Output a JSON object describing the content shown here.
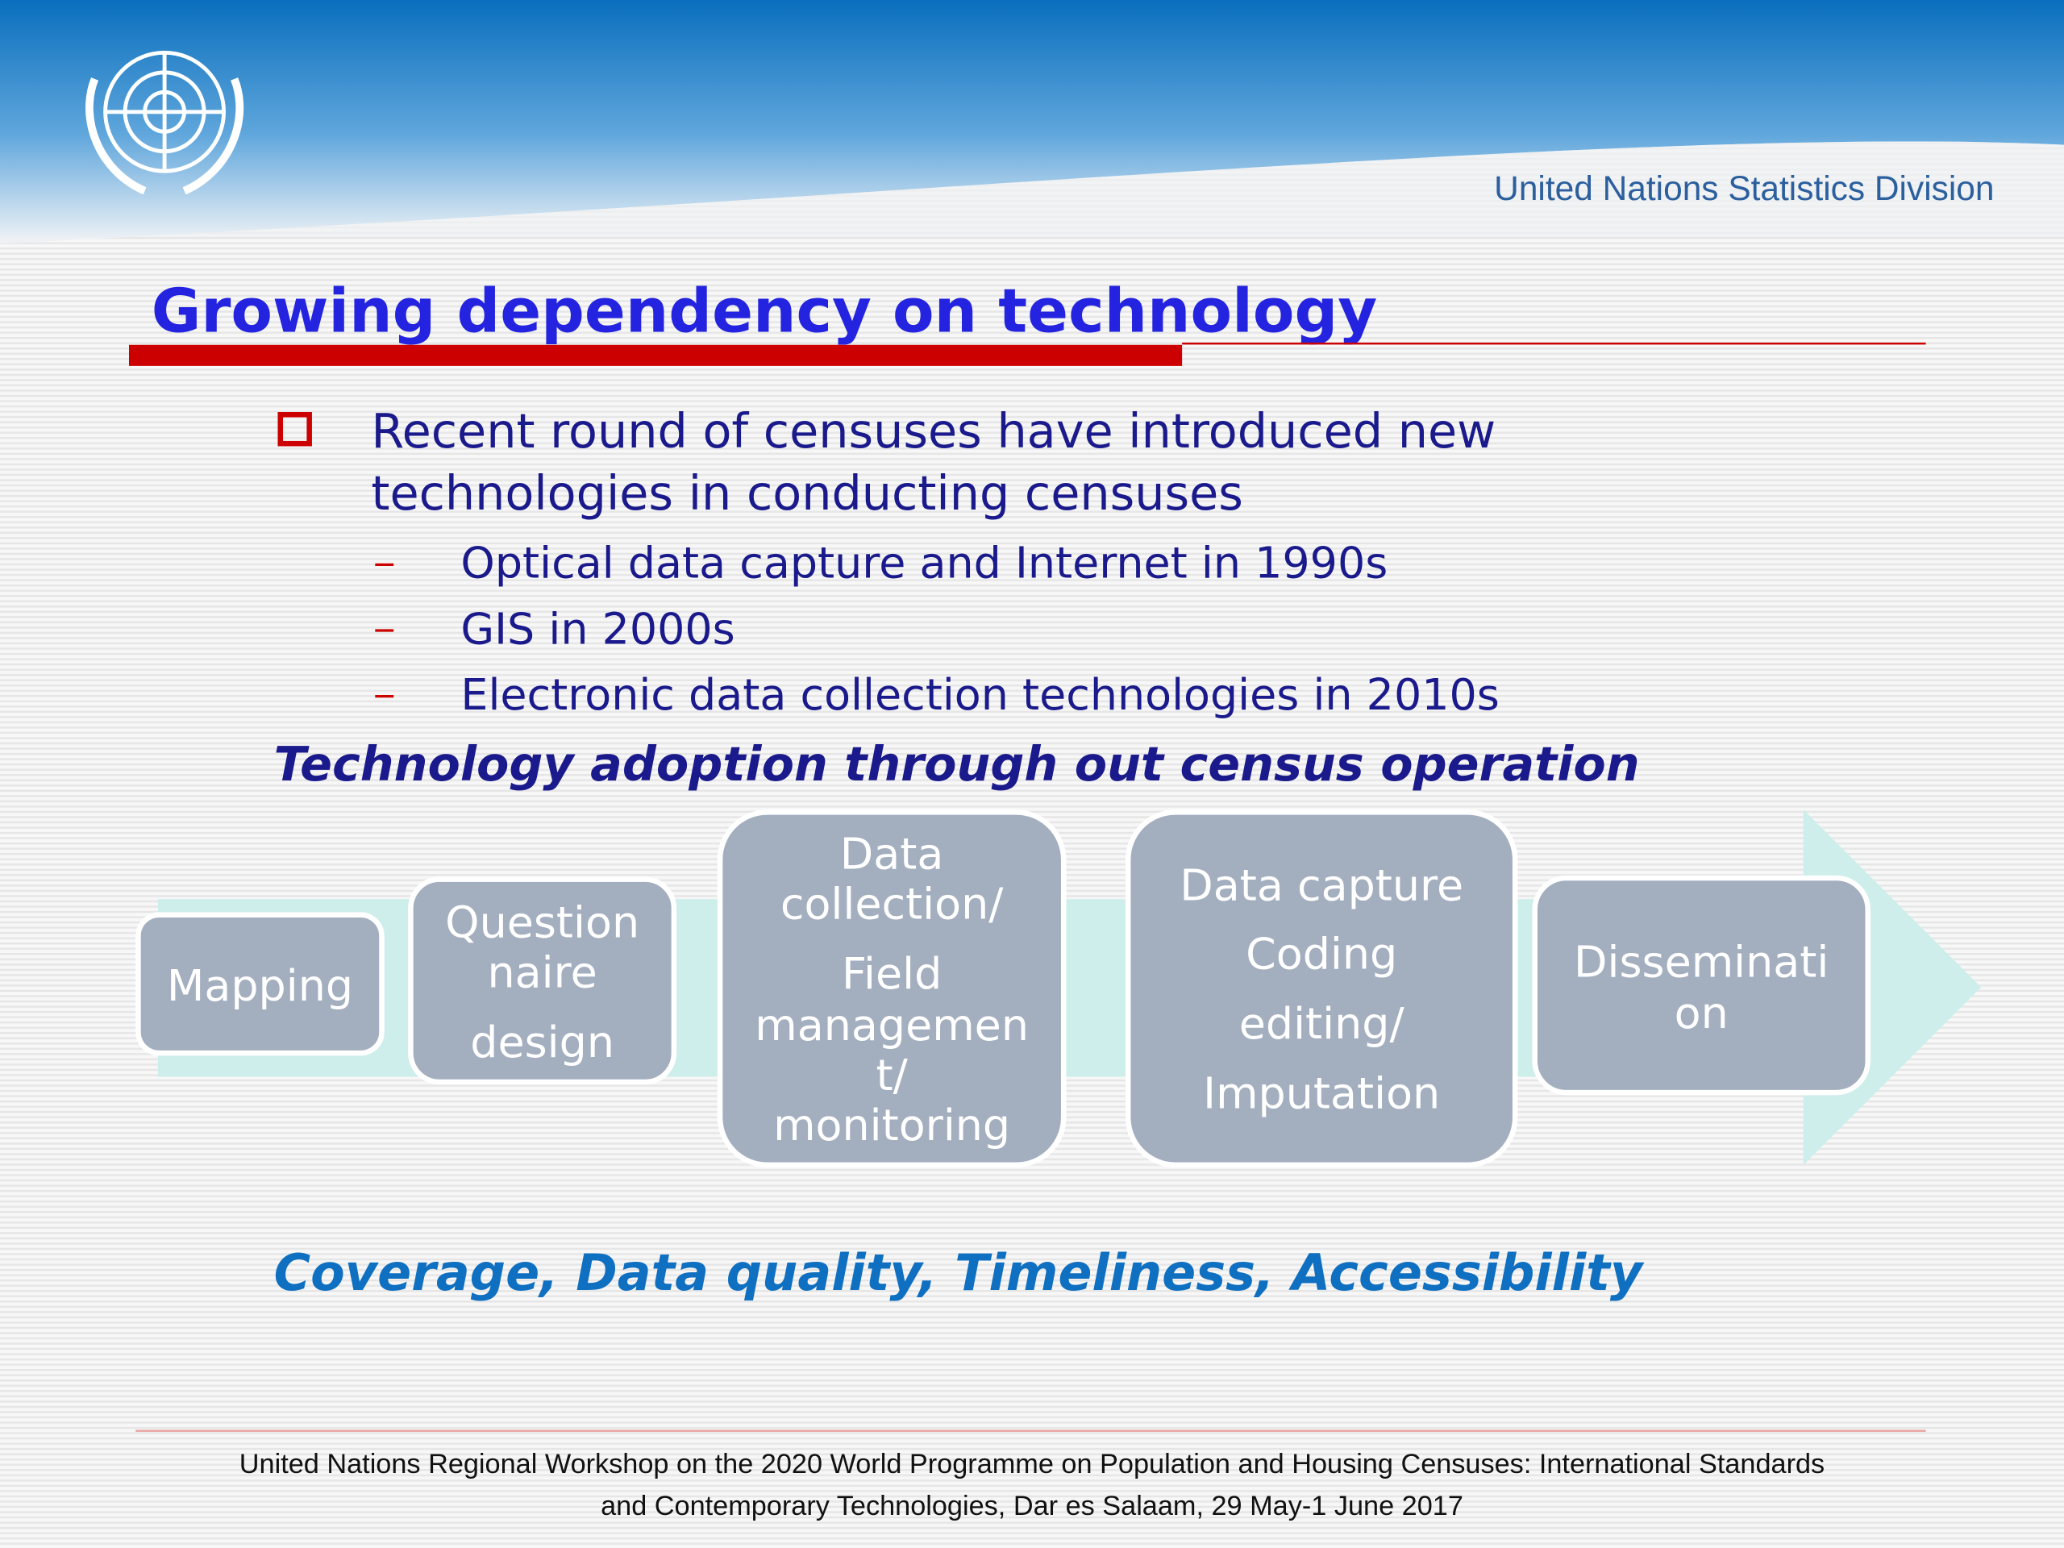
{
  "header": {
    "organization": "United Nations Statistics Division"
  },
  "title": "Growing dependency on technology",
  "bullet": {
    "lines": [
      "Recent round of censuses have introduced new",
      "technologies in conducting censuses"
    ],
    "subitems": [
      "Optical data capture and Internet  in 1990s",
      "GIS in 2000s",
      "Electronic data collection technologies in 2010s"
    ]
  },
  "subheading": "Technology adoption through out census operation",
  "process": {
    "steps": [
      {
        "lines": [
          "Mapping"
        ]
      },
      {
        "lines": [
          "Question",
          "naire",
          "design"
        ]
      },
      {
        "lines": [
          "Data",
          "collection/",
          "Field",
          "managemen",
          "t/",
          "monitoring"
        ]
      },
      {
        "lines": [
          "Data capture",
          "Coding",
          "editing/",
          "Imputation"
        ]
      },
      {
        "lines": [
          "Disseminati",
          "on"
        ]
      }
    ]
  },
  "outcomes": "Coverage, Data quality, Timeliness, Accessibility",
  "footer": {
    "lines": [
      "United Nations Regional Workshop on the 2020 World Programme on Population and Housing Censuses: International Standards",
      "and Contemporary Technologies, Dar es Salaam, 29 May-1 June  2017"
    ]
  }
}
